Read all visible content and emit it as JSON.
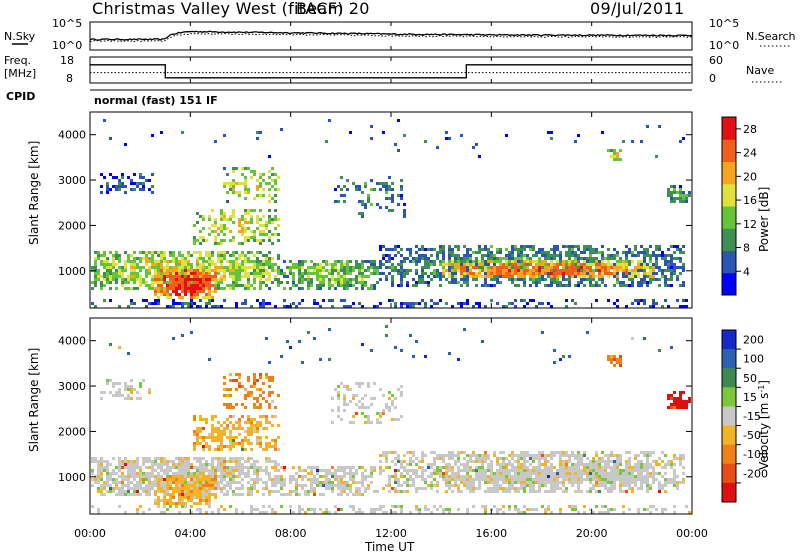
{
  "header": {
    "station": "Christmas Valley West (fitACF)",
    "beam": "Beam 20",
    "date": "09/Jul/2011"
  },
  "noise_panel": {
    "left_label": "N.Sky",
    "right_label": "N.Search",
    "y_ticks_left": [
      "10^5",
      "10^0"
    ],
    "y_ticks_right": [
      "10^5",
      "10^0"
    ]
  },
  "freq_panel": {
    "left_label_line1": "Freq.",
    "left_label_line2": "[MHz]",
    "right_label": "Nave",
    "y_ticks_left": [
      "18",
      "8"
    ],
    "y_ticks_right": [
      "60",
      "0"
    ]
  },
  "cpid": {
    "label": "CPID",
    "value": "normal (fast) 151 IF"
  },
  "time_axis": {
    "label": "Time UT",
    "ticks": [
      "00:00",
      "04:00",
      "08:00",
      "12:00",
      "16:00",
      "20:00",
      "00:00"
    ]
  },
  "colors": {
    "power": [
      "#0000ff",
      "#2a55b5",
      "#3e8f53",
      "#66c43a",
      "#dfe23a",
      "#f5a51e",
      "#f0601a",
      "#e21010"
    ],
    "velocity": [
      "#1528c8",
      "#2a62b0",
      "#3d8a4e",
      "#7cc63a",
      "#c8c8c8",
      "#f2b424",
      "#f0801a",
      "#ea4c14",
      "#e00f0f"
    ]
  },
  "chart_data": [
    {
      "type": "line",
      "title": "N.Sky / N.Search",
      "y_scale": "log",
      "ylim": [
        1,
        100000
      ],
      "x": [
        "00:00",
        "03:00",
        "04:00",
        "06:00",
        "08:00",
        "12:00",
        "16:00",
        "20:00",
        "24:00"
      ],
      "series": [
        {
          "name": "N.Sky",
          "values": [
            80,
            80,
            2000,
            1500,
            1200,
            700,
            500,
            450,
            400
          ]
        },
        {
          "name": "N.Search",
          "values": [
            40,
            40,
            800,
            700,
            600,
            350,
            250,
            220,
            200
          ]
        }
      ]
    },
    {
      "type": "line",
      "title": "Freq. / Nave",
      "ylim": [
        8,
        18
      ],
      "x": [
        "00:00",
        "03:00",
        "03:00",
        "15:00",
        "15:00",
        "24:00"
      ],
      "series": [
        {
          "name": "Freq.",
          "values": [
            15,
            15,
            10,
            10,
            15,
            15
          ]
        },
        {
          "name": "Nave",
          "values": [
            24,
            24,
            24,
            24,
            24,
            24
          ]
        }
      ]
    },
    {
      "type": "heatmap",
      "title": "Power",
      "xlabel": "Time UT",
      "ylabel": "Slant Range [km]",
      "xlim": [
        "00:00",
        "24:00"
      ],
      "ylim": [
        180,
        4500
      ],
      "y_ticks": [
        1000,
        2000,
        3000,
        4000
      ],
      "colorbar": {
        "label": "Power [dB]",
        "ticks": [
          4,
          8,
          12,
          16,
          20,
          24,
          28
        ],
        "range": [
          0,
          30
        ]
      }
    },
    {
      "type": "heatmap",
      "title": "Velocity",
      "xlabel": "Time UT",
      "ylabel": "Slant Range [km]",
      "xlim": [
        "00:00",
        "24:00"
      ],
      "ylim": [
        180,
        4500
      ],
      "y_ticks": [
        1000,
        2000,
        3000,
        4000
      ],
      "colorbar": {
        "label": "Velocity [m s-1]",
        "ticks": [
          200,
          100,
          50,
          15,
          -15,
          -50,
          -100,
          -200
        ]
      }
    }
  ]
}
